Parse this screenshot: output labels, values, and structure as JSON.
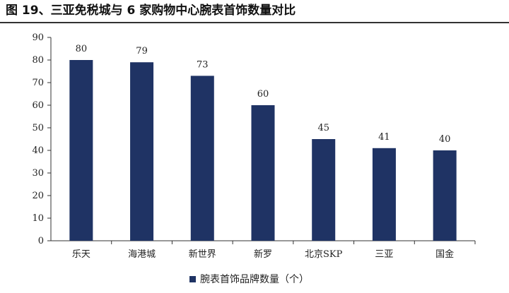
{
  "title": "图 19、三亚免税城与 6 家购物中心腕表首饰数量对比",
  "colors": {
    "bar": "#1f3364",
    "axis": "#333333"
  },
  "chart_data": {
    "type": "bar",
    "categories": [
      "乐天",
      "海港城",
      "新世界",
      "新罗",
      "北京SKP",
      "三亚",
      "国金"
    ],
    "series": [
      {
        "name": "腕表首饰品牌数量（个）",
        "values": [
          80,
          79,
          73,
          60,
          45,
          41,
          40
        ]
      }
    ],
    "ylim": [
      0,
      90
    ],
    "yticks": [
      0,
      10,
      20,
      30,
      40,
      50,
      60,
      70,
      80,
      90
    ],
    "xlabel": "",
    "ylabel": "",
    "grid": false,
    "legend_position": "bottom"
  }
}
